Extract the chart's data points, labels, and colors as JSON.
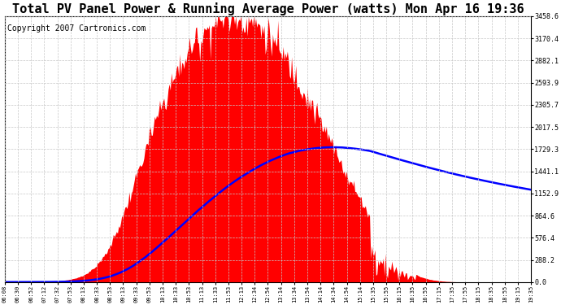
{
  "title": "Total PV Panel Power & Running Average Power (watts) Mon Apr 16 19:36",
  "copyright": "Copyright 2007 Cartronics.com",
  "x_labels": [
    "06:08",
    "06:30",
    "06:52",
    "07:12",
    "07:32",
    "07:53",
    "08:13",
    "08:33",
    "08:53",
    "09:13",
    "09:33",
    "09:53",
    "10:13",
    "10:33",
    "10:53",
    "11:13",
    "11:33",
    "11:53",
    "12:13",
    "12:34",
    "12:54",
    "13:14",
    "13:34",
    "13:54",
    "14:14",
    "14:34",
    "14:54",
    "15:14",
    "15:35",
    "15:55",
    "16:15",
    "16:35",
    "16:55",
    "17:15",
    "17:35",
    "17:55",
    "18:15",
    "18:35",
    "18:55",
    "19:15",
    "19:35"
  ],
  "y_ticks": [
    0.0,
    288.2,
    576.4,
    864.6,
    1152.9,
    1441.1,
    1729.3,
    2017.5,
    2305.7,
    2593.9,
    2882.1,
    3170.4,
    3458.6
  ],
  "y_max": 3458.6,
  "background_color": "#ffffff",
  "fill_color": "#ff0000",
  "avg_line_color": "#0000ff",
  "grid_color": "#c8c8c8",
  "title_fontsize": 11,
  "copyright_fontsize": 7
}
